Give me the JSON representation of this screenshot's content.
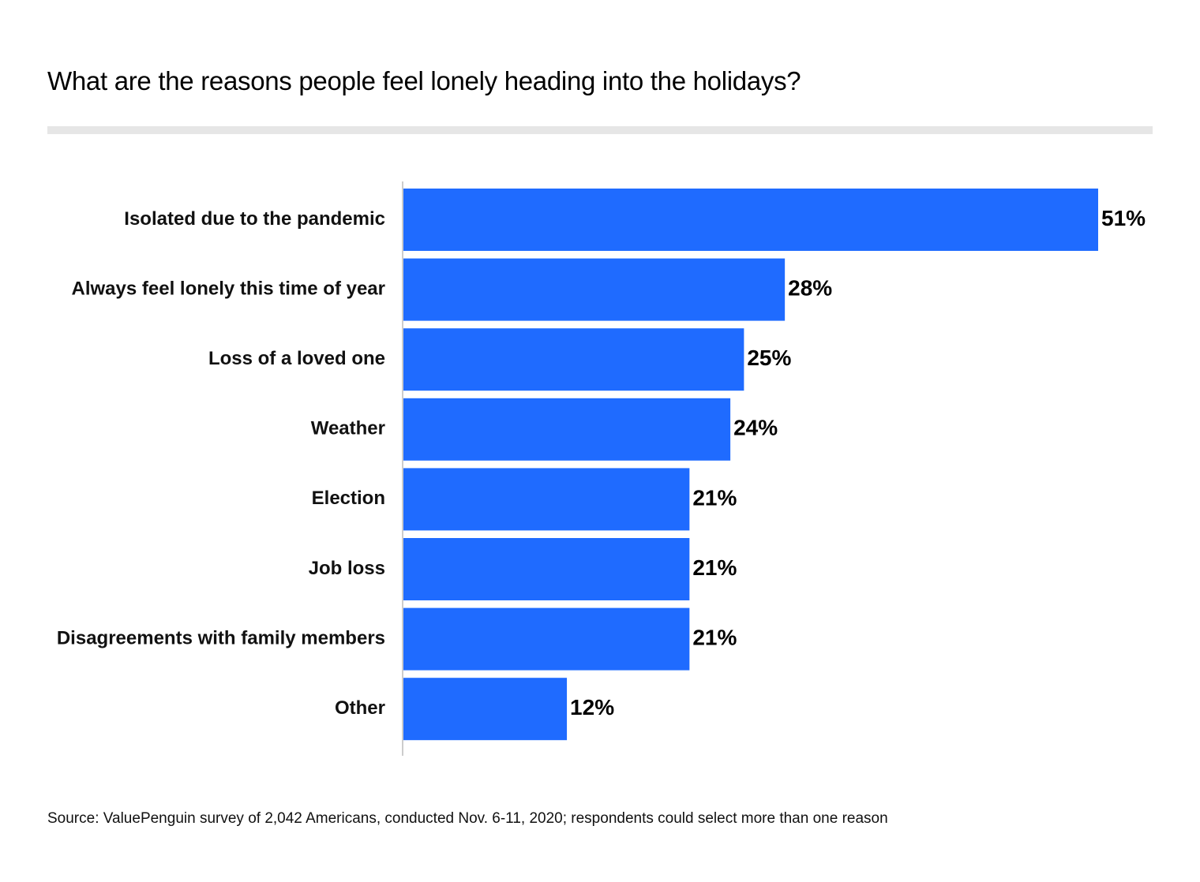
{
  "chart_data": {
    "type": "bar",
    "orientation": "horizontal",
    "title": "What are the reasons people feel lonely heading into the holidays?",
    "categories": [
      "Isolated due to the pandemic",
      "Always feel lonely this time of year",
      "Loss of a loved one",
      "Weather",
      "Election",
      "Job loss",
      "Disagreements with family members",
      "Other"
    ],
    "values": [
      51,
      28,
      25,
      24,
      21,
      21,
      21,
      12
    ],
    "value_labels": [
      "51%",
      "28%",
      "25%",
      "24%",
      "21%",
      "21%",
      "21%",
      "12%"
    ],
    "unit": "%",
    "xlim": [
      0,
      51
    ],
    "grid": false,
    "bar_color": "#1f6bff",
    "axis_color": "#cccccc",
    "source": "Source: ValuePenguin survey of 2,042 Americans, conducted Nov. 6-11, 2020; respondents could select more than one reason"
  }
}
